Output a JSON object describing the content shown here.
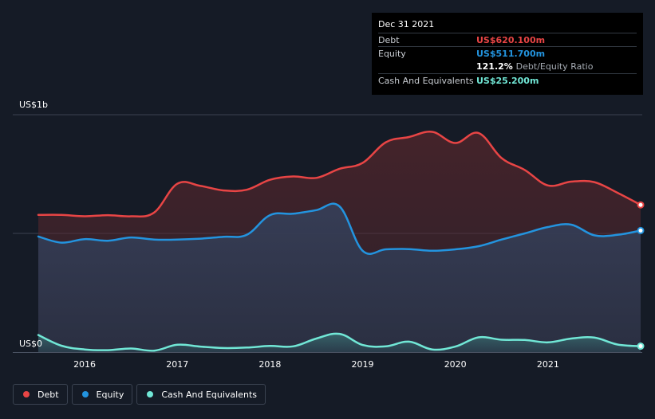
{
  "colors": {
    "background": "#151b26",
    "debt": "#e84545",
    "equity": "#2394df",
    "cash": "#71e7d6"
  },
  "tooltip": {
    "date": "Dec 31 2021",
    "debt_label": "Debt",
    "debt_value": "US$620.100m",
    "equity_label": "Equity",
    "equity_value": "US$511.700m",
    "ratio_value": "121.2%",
    "ratio_label": "Debt/Equity Ratio",
    "cash_label": "Cash And Equivalents",
    "cash_value": "US$25.200m"
  },
  "legend": {
    "debt": "Debt",
    "equity": "Equity",
    "cash": "Cash And Equivalents"
  },
  "chart_data": {
    "type": "area",
    "title": "",
    "xlabel": "",
    "ylabel": "",
    "y_top_label": "US$1b",
    "y_bottom_label": "US$0",
    "ylim": [
      0,
      1000
    ],
    "xlim": [
      2015.5,
      2022.0
    ],
    "x_ticks": [
      2016,
      2017,
      2018,
      2019,
      2020,
      2021
    ],
    "x_tick_labels": [
      "2016",
      "2017",
      "2018",
      "2019",
      "2020",
      "2021"
    ],
    "grid": true,
    "series": [
      {
        "name": "Debt",
        "key": "debt",
        "points": [
          [
            2015.5,
            578
          ],
          [
            2015.75,
            578
          ],
          [
            2016.0,
            572
          ],
          [
            2016.25,
            577
          ],
          [
            2016.5,
            572
          ],
          [
            2016.75,
            588
          ],
          [
            2017.0,
            709
          ],
          [
            2017.25,
            700
          ],
          [
            2017.5,
            681
          ],
          [
            2017.75,
            684
          ],
          [
            2018.0,
            726
          ],
          [
            2018.25,
            740
          ],
          [
            2018.5,
            734
          ],
          [
            2018.75,
            772
          ],
          [
            2019.0,
            797
          ],
          [
            2019.25,
            884
          ],
          [
            2019.5,
            906
          ],
          [
            2019.75,
            928
          ],
          [
            2020.0,
            881
          ],
          [
            2020.25,
            923
          ],
          [
            2020.5,
            817
          ],
          [
            2020.75,
            767
          ],
          [
            2021.0,
            702
          ],
          [
            2021.25,
            718
          ],
          [
            2021.5,
            716
          ],
          [
            2021.75,
            671
          ],
          [
            2022.0,
            620
          ]
        ]
      },
      {
        "name": "Equity",
        "key": "equity",
        "points": [
          [
            2015.5,
            487
          ],
          [
            2015.75,
            461
          ],
          [
            2016.0,
            476
          ],
          [
            2016.25,
            469
          ],
          [
            2016.5,
            483
          ],
          [
            2016.75,
            474
          ],
          [
            2017.0,
            474
          ],
          [
            2017.25,
            478
          ],
          [
            2017.5,
            486
          ],
          [
            2017.75,
            494
          ],
          [
            2018.0,
            577
          ],
          [
            2018.25,
            583
          ],
          [
            2018.5,
            598
          ],
          [
            2018.75,
            614
          ],
          [
            2019.0,
            427
          ],
          [
            2019.25,
            433
          ],
          [
            2019.5,
            434
          ],
          [
            2019.75,
            427
          ],
          [
            2020.0,
            433
          ],
          [
            2020.25,
            446
          ],
          [
            2020.5,
            474
          ],
          [
            2020.75,
            500
          ],
          [
            2021.0,
            527
          ],
          [
            2021.25,
            537
          ],
          [
            2021.5,
            492
          ],
          [
            2021.75,
            494
          ],
          [
            2022.0,
            512
          ]
        ]
      },
      {
        "name": "Cash And Equivalents",
        "key": "cash",
        "points": [
          [
            2015.5,
            72
          ],
          [
            2015.75,
            27
          ],
          [
            2016.0,
            11
          ],
          [
            2016.25,
            8
          ],
          [
            2016.5,
            15
          ],
          [
            2016.75,
            6
          ],
          [
            2017.0,
            31
          ],
          [
            2017.25,
            23
          ],
          [
            2017.5,
            17
          ],
          [
            2017.75,
            19
          ],
          [
            2018.0,
            26
          ],
          [
            2018.25,
            24
          ],
          [
            2018.5,
            57
          ],
          [
            2018.75,
            77
          ],
          [
            2019.0,
            30
          ],
          [
            2019.25,
            24
          ],
          [
            2019.5,
            44
          ],
          [
            2019.75,
            11
          ],
          [
            2020.0,
            23
          ],
          [
            2020.25,
            62
          ],
          [
            2020.5,
            52
          ],
          [
            2020.75,
            51
          ],
          [
            2021.0,
            41
          ],
          [
            2021.25,
            57
          ],
          [
            2021.5,
            61
          ],
          [
            2021.75,
            32
          ],
          [
            2022.0,
            25
          ]
        ]
      }
    ]
  }
}
